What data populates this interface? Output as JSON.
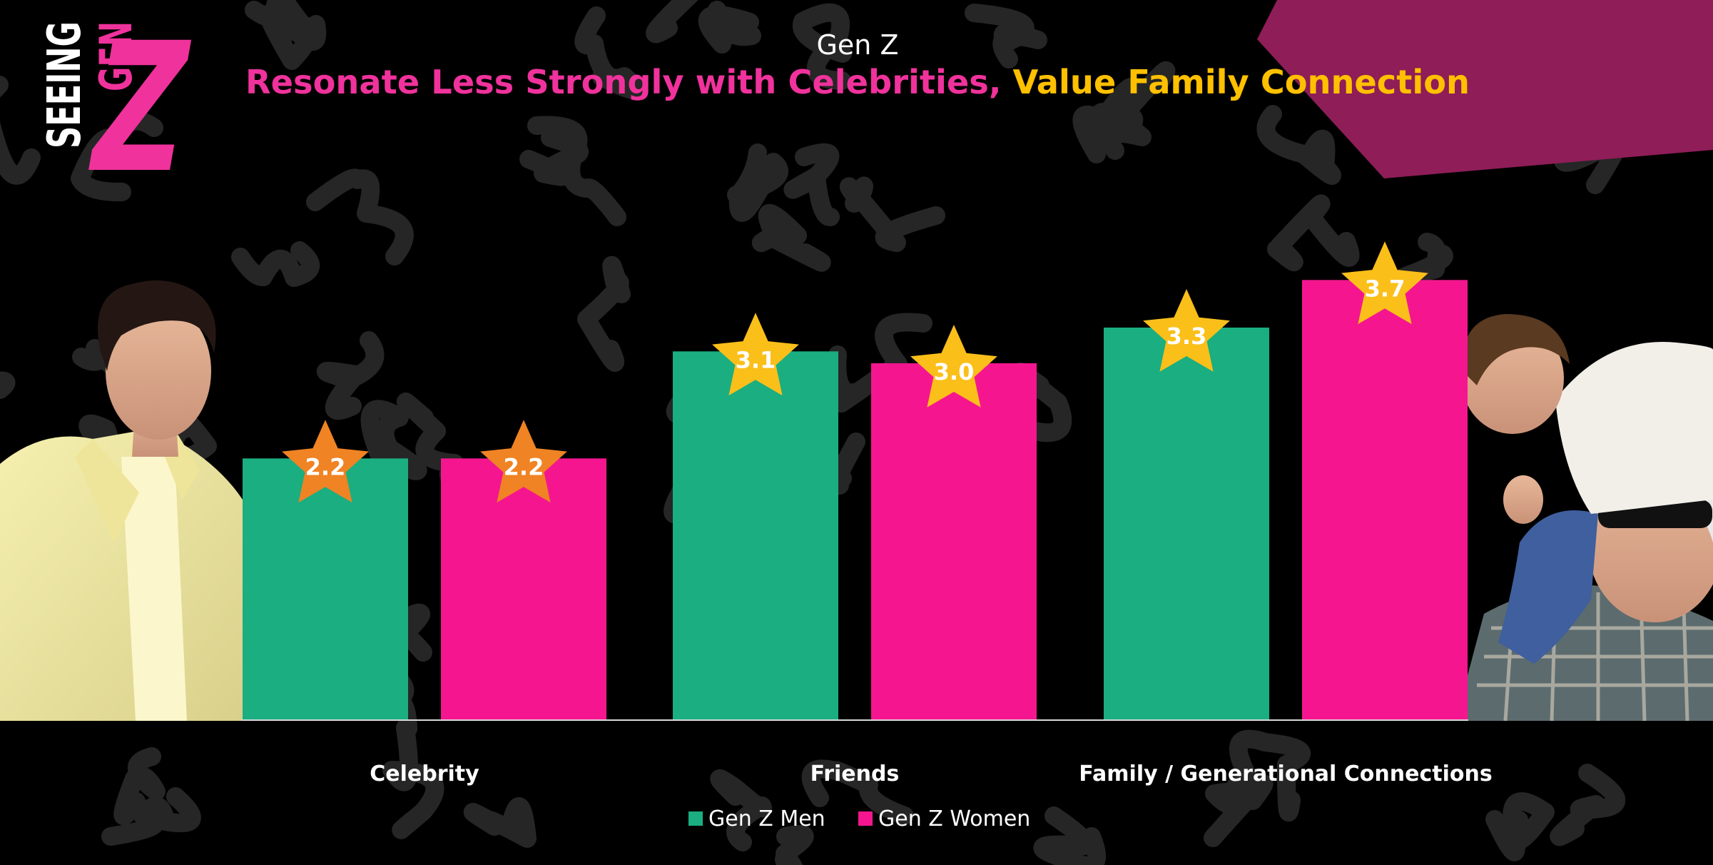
{
  "logo": {
    "text": "SEEING GEN Z",
    "line1": "SEEING",
    "line2": "GEN",
    "line3": "Z"
  },
  "colors": {
    "background": "#000000",
    "men": "#1AAE80",
    "women": "#F5168F",
    "star_low": "#F08323",
    "star_high": "#FBBF1A",
    "headline_pink": "#F0329C",
    "headline_yellow": "#FFC000",
    "corner_banner": "#8E1D58",
    "pattern": "#262626"
  },
  "chart_data": {
    "type": "bar",
    "title": "Gen Z",
    "subtitle_part1": "Resonate Less Strongly with Celebrities,",
    "subtitle_part2": "Value Family Connection",
    "categories": [
      "Celebrity",
      "Friends",
      "Family / Generational Connections"
    ],
    "series": [
      {
        "name": "Gen Z Men",
        "values": [
          2.2,
          3.1,
          3.3
        ],
        "labels": [
          "2.2",
          "3.1",
          "3.3"
        ]
      },
      {
        "name": "Gen Z Women",
        "values": [
          2.2,
          3.0,
          3.7
        ],
        "labels": [
          "2.2",
          "3.0",
          "3.7"
        ]
      }
    ],
    "ylim": [
      0,
      5.4
    ],
    "grid": false,
    "legend_placement": "bottom",
    "data_labels": "in-star-markers",
    "xlabel": "",
    "ylabel": ""
  },
  "images": {
    "left_photo": "young-man-in-yellow-suit-photo",
    "right_photo": "grandfather-with-grandson-on-shoulders-photo"
  }
}
